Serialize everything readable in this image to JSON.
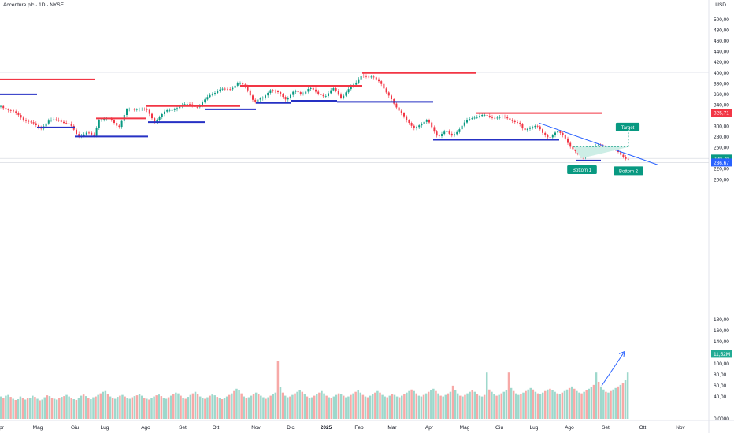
{
  "header": {
    "title": "Accenture plc · 1D · NYSE",
    "currency": "USD"
  },
  "chart_data": {
    "type": "candlestick",
    "y_ticks": [
      "500,00",
      "480,00",
      "460,00",
      "440,00",
      "420,00",
      "400,00",
      "380,00",
      "360,00",
      "340,00",
      "300,00",
      "280,00",
      "260,00",
      "220,00",
      "200,00",
      "180,00",
      "160,00",
      "140,00",
      "100,00",
      "80,00",
      "60,00",
      "40,00",
      "0,0000"
    ],
    "y_tick_values": [
      500,
      480,
      460,
      440,
      420,
      400,
      380,
      360,
      340,
      300,
      280,
      260,
      220,
      200,
      180,
      160,
      140,
      100,
      80,
      60,
      40,
      0
    ],
    "x_ticks": [
      "pr",
      "Mag",
      "Giu",
      "Lug",
      "Ago",
      "Set",
      "Ott",
      "Nov",
      "Dic",
      "2025",
      "Feb",
      "Mar",
      "Apr",
      "Mag",
      "Giu",
      "Lug",
      "Ago",
      "Set",
      "Ott",
      "Nov"
    ],
    "x_tick_positions": [
      2,
      48,
      95,
      133,
      185,
      232,
      274,
      325,
      369,
      414,
      456,
      498,
      545,
      590,
      634,
      678,
      723,
      769,
      816,
      864
    ],
    "price_badges": [
      {
        "label": "325,71",
        "color": "#f23645"
      },
      {
        "label": "239,70",
        "color": "#089981"
      },
      {
        "label": "236,67",
        "color": "#2962ff"
      },
      {
        "label": "11,52M",
        "color": "#22ab94"
      }
    ],
    "annotations": [
      {
        "label": "Target",
        "color": "#089981"
      },
      {
        "label": "Bottom 1",
        "color": "#089981"
      },
      {
        "label": "Bottom 2",
        "color": "#089981"
      }
    ],
    "price_path": [
      [
        0,
        338
      ],
      [
        12,
        330
      ],
      [
        25,
        318
      ],
      [
        40,
        305
      ],
      [
        50,
        296
      ],
      [
        60,
        310
      ],
      [
        75,
        312
      ],
      [
        88,
        302
      ],
      [
        98,
        282
      ],
      [
        110,
        288
      ],
      [
        118,
        280
      ],
      [
        125,
        315
      ],
      [
        140,
        312
      ],
      [
        150,
        300
      ],
      [
        160,
        330
      ],
      [
        175,
        335
      ],
      [
        185,
        330
      ],
      [
        195,
        310
      ],
      [
        210,
        328
      ],
      [
        225,
        336
      ],
      [
        240,
        342
      ],
      [
        252,
        335
      ],
      [
        265,
        360
      ],
      [
        280,
        368
      ],
      [
        292,
        372
      ],
      [
        302,
        380
      ],
      [
        312,
        374
      ],
      [
        322,
        345
      ],
      [
        332,
        352
      ],
      [
        342,
        370
      ],
      [
        352,
        362
      ],
      [
        362,
        352
      ],
      [
        372,
        365
      ],
      [
        382,
        360
      ],
      [
        392,
        374
      ],
      [
        402,
        360
      ],
      [
        412,
        358
      ],
      [
        422,
        370
      ],
      [
        432,
        354
      ],
      [
        440,
        368
      ],
      [
        450,
        378
      ],
      [
        458,
        398
      ],
      [
        466,
        392
      ],
      [
        474,
        390
      ],
      [
        482,
        385
      ],
      [
        490,
        362
      ],
      [
        500,
        340
      ],
      [
        510,
        325
      ],
      [
        516,
        308
      ],
      [
        524,
        296
      ],
      [
        532,
        305
      ],
      [
        542,
        310
      ],
      [
        548,
        296
      ],
      [
        555,
        282
      ],
      [
        565,
        290
      ],
      [
        572,
        282
      ],
      [
        582,
        295
      ],
      [
        592,
        310
      ],
      [
        600,
        318
      ],
      [
        610,
        320
      ],
      [
        622,
        318
      ],
      [
        640,
        316
      ],
      [
        650,
        312
      ],
      [
        658,
        305
      ],
      [
        664,
        290
      ],
      [
        672,
        300
      ],
      [
        680,
        302
      ],
      [
        688,
        286
      ],
      [
        696,
        280
      ],
      [
        706,
        290
      ],
      [
        716,
        280
      ],
      [
        724,
        262
      ],
      [
        732,
        248
      ],
      [
        738,
        240
      ],
      [
        742,
        245
      ],
      [
        748,
        255
      ],
      [
        756,
        262
      ],
      [
        764,
        262
      ],
      [
        772,
        258
      ],
      [
        780,
        255
      ],
      [
        788,
        246
      ],
      [
        795,
        240
      ],
      [
        799,
        240
      ]
    ],
    "resistance_lines": [
      [
        0,
        120,
        388
      ],
      [
        305,
        460,
        376
      ],
      [
        122,
        185,
        315
      ],
      [
        185,
        305,
        338
      ],
      [
        605,
        765,
        325
      ],
      [
        460,
        605,
        400
      ]
    ],
    "support_lines": [
      [
        0,
        47,
        360
      ],
      [
        47,
        95,
        298
      ],
      [
        95,
        188,
        281
      ],
      [
        188,
        260,
        308
      ],
      [
        260,
        325,
        332
      ],
      [
        325,
        370,
        344
      ],
      [
        370,
        428,
        348
      ],
      [
        428,
        550,
        346
      ],
      [
        550,
        710,
        275
      ],
      [
        732,
        763,
        236
      ]
    ],
    "volume": [
      58,
      55,
      60,
      62,
      57,
      52,
      49,
      51,
      58,
      54,
      50,
      53,
      55,
      60,
      57,
      52,
      48,
      50,
      56,
      61,
      59,
      55,
      52,
      50,
      54,
      57,
      59,
      62,
      58,
      53,
      51,
      49,
      55,
      60,
      63,
      59,
      54,
      51,
      56,
      58,
      62,
      66,
      70,
      72,
      64,
      58,
      55,
      52,
      57,
      60,
      62,
      58,
      55,
      52,
      56,
      59,
      61,
      64,
      60,
      55,
      52,
      50,
      54,
      58,
      61,
      63,
      59,
      55,
      52,
      56,
      60,
      64,
      68,
      66,
      60,
      55,
      52,
      57,
      62,
      66,
      70,
      64,
      58,
      54,
      52,
      56,
      60,
      63,
      61,
      57,
      53,
      51,
      55,
      58,
      62,
      66,
      72,
      78,
      74,
      66,
      58,
      54,
      56,
      60,
      64,
      68,
      64,
      60,
      56,
      52,
      56,
      60,
      64,
      68,
      150,
      82,
      68,
      60,
      56,
      58,
      62,
      66,
      70,
      74,
      70,
      64,
      58,
      54,
      56,
      60,
      64,
      68,
      72,
      66,
      60,
      56,
      54,
      58,
      62,
      66,
      64,
      60,
      56,
      58,
      62,
      66,
      70,
      74,
      68,
      62,
      58,
      56,
      60,
      64,
      68,
      72,
      68,
      62,
      58,
      56,
      60,
      64,
      62,
      58,
      56,
      60,
      64,
      68,
      72,
      76,
      72,
      66,
      60,
      58,
      62,
      66,
      70,
      74,
      78,
      72,
      66,
      60,
      58,
      62,
      66,
      70,
      86,
      74,
      66,
      60,
      58,
      62,
      66,
      70,
      74,
      70,
      64,
      60,
      58,
      62,
      120,
      76,
      70,
      64,
      60,
      62,
      66,
      70,
      74,
      120,
      80,
      72,
      66,
      62,
      64,
      68,
      72,
      76,
      80,
      76,
      70,
      66,
      64,
      68,
      72,
      76,
      78,
      74,
      70,
      66,
      64,
      68,
      72,
      76,
      80,
      84,
      78,
      72,
      68,
      66,
      70,
      74,
      78,
      82,
      88,
      120,
      96,
      84,
      76,
      70,
      68,
      72,
      76,
      80,
      84,
      88,
      92,
      100,
      120
    ],
    "volume_scale": 160
  }
}
